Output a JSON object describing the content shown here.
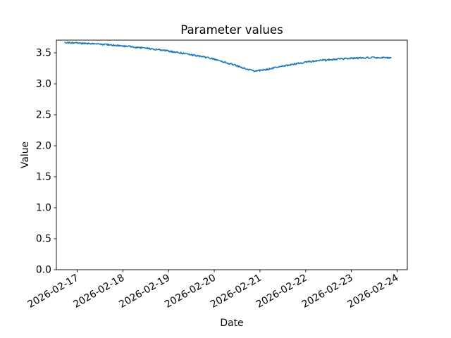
{
  "figure": {
    "background": "#ffffff",
    "text_color": "#000000"
  },
  "chart_data": {
    "type": "line",
    "title": "Parameter values",
    "xlabel": "Date",
    "ylabel": "Value",
    "x_tick_labels": [
      "2026-02-17",
      "2026-02-18",
      "2026-02-19",
      "2026-02-20",
      "2026-02-21",
      "2026-02-22",
      "2026-02-23",
      "2026-02-24"
    ],
    "y_tick_labels": [
      "0.0",
      "0.5",
      "1.0",
      "1.5",
      "2.0",
      "2.5",
      "3.0",
      "3.5"
    ],
    "ylim": [
      0.0,
      3.705
    ],
    "xlim_days": [
      -0.455,
      7.224
    ],
    "grid": false,
    "legend": false,
    "series": [
      {
        "name": "Parameter values",
        "color": "#1f77b4",
        "line_width": 1.5,
        "x_start_day": -0.27,
        "x_end_day": 6.87,
        "trend": [
          [
            -0.27,
            3.668
          ],
          [
            0.0,
            3.658
          ],
          [
            0.5,
            3.64
          ],
          [
            1.0,
            3.612
          ],
          [
            1.5,
            3.575
          ],
          [
            2.0,
            3.53
          ],
          [
            2.5,
            3.47
          ],
          [
            3.0,
            3.4
          ],
          [
            3.3,
            3.335
          ],
          [
            3.6,
            3.265
          ],
          [
            3.87,
            3.205
          ],
          [
            4.1,
            3.225
          ],
          [
            4.5,
            3.285
          ],
          [
            5.0,
            3.35
          ],
          [
            5.5,
            3.39
          ],
          [
            6.0,
            3.412
          ],
          [
            6.5,
            3.423
          ],
          [
            6.87,
            3.42
          ]
        ],
        "noise_amplitude": 0.013,
        "num_points": 620
      }
    ]
  }
}
